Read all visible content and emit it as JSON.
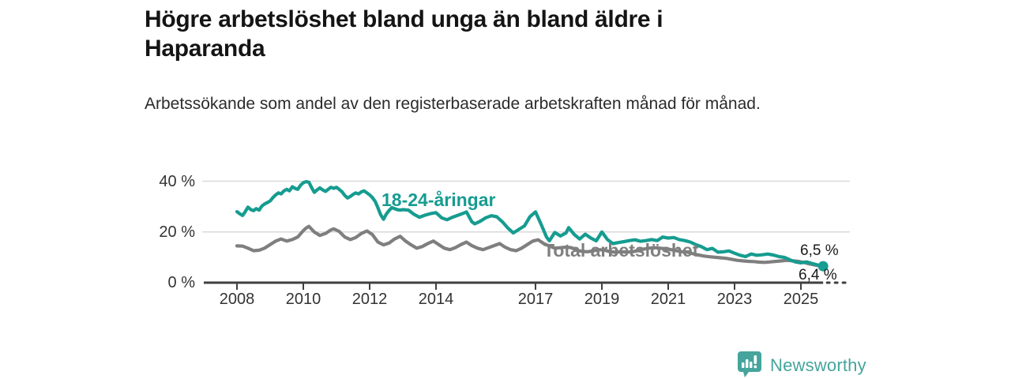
{
  "title": "Högre arbetslöshet bland unga än bland äldre i Haparanda",
  "subtitle": "Arbetssökande som andel av den registerbaserade arbetskraften månad för månad.",
  "branding": {
    "logo_text": "Newsworthy",
    "logo_color": "#45a49c",
    "icon": "newsworthy-speech-bubble-bar-chart-icon"
  },
  "chart_data": {
    "type": "line",
    "title": "Högre arbetslöshet bland unga än bland äldre i Haparanda",
    "xlabel": "",
    "ylabel": "",
    "grid": "horizontal",
    "legend_position": "inline-labels",
    "xlim": [
      2007.1,
      2026.5
    ],
    "ylim": [
      0,
      42
    ],
    "x_ticks": [
      2008,
      2010,
      2012,
      2014,
      2017,
      2019,
      2021,
      2023,
      2025
    ],
    "x_tick_labels": [
      "2008",
      "2010",
      "2012",
      "2014",
      "2017",
      "2019",
      "2021",
      "2023",
      "2025"
    ],
    "y_ticks": [
      0,
      20,
      40
    ],
    "y_tick_labels": [
      "0 %",
      "20 %",
      "40 %"
    ],
    "axis_color": "#3f3f3f",
    "grid_color": "#d9d9d9",
    "axis_dotted_extension": [
      2025.67,
      2026.45
    ],
    "series": [
      {
        "name": "18-24-åringar",
        "color": "#169c90",
        "end_label": "6,5 %",
        "end_value": 6.5,
        "end_marker": "dot",
        "points": [
          [
            2008.0,
            28.0
          ],
          [
            2008.08,
            27.2
          ],
          [
            2008.17,
            26.5
          ],
          [
            2008.25,
            28.0
          ],
          [
            2008.33,
            29.8
          ],
          [
            2008.42,
            28.8
          ],
          [
            2008.5,
            28.4
          ],
          [
            2008.58,
            29.2
          ],
          [
            2008.67,
            28.6
          ],
          [
            2008.75,
            30.2
          ],
          [
            2008.83,
            31.0
          ],
          [
            2008.92,
            31.6
          ],
          [
            2009.0,
            32.2
          ],
          [
            2009.08,
            33.5
          ],
          [
            2009.17,
            34.6
          ],
          [
            2009.25,
            35.4
          ],
          [
            2009.33,
            35.0
          ],
          [
            2009.42,
            36.2
          ],
          [
            2009.5,
            36.8
          ],
          [
            2009.58,
            36.2
          ],
          [
            2009.67,
            37.8
          ],
          [
            2009.75,
            37.2
          ],
          [
            2009.83,
            36.8
          ],
          [
            2009.92,
            38.4
          ],
          [
            2010.0,
            39.4
          ],
          [
            2010.08,
            39.8
          ],
          [
            2010.17,
            39.6
          ],
          [
            2010.25,
            37.5
          ],
          [
            2010.33,
            35.6
          ],
          [
            2010.42,
            36.6
          ],
          [
            2010.5,
            37.4
          ],
          [
            2010.58,
            36.6
          ],
          [
            2010.67,
            36.0
          ],
          [
            2010.75,
            36.8
          ],
          [
            2010.83,
            37.6
          ],
          [
            2010.92,
            37.2
          ],
          [
            2011.0,
            37.6
          ],
          [
            2011.08,
            36.8
          ],
          [
            2011.17,
            35.8
          ],
          [
            2011.25,
            34.4
          ],
          [
            2011.33,
            33.4
          ],
          [
            2011.42,
            34.0
          ],
          [
            2011.5,
            34.8
          ],
          [
            2011.58,
            35.4
          ],
          [
            2011.67,
            35.0
          ],
          [
            2011.75,
            35.8
          ],
          [
            2011.83,
            36.2
          ],
          [
            2011.92,
            35.4
          ],
          [
            2012.0,
            34.6
          ],
          [
            2012.08,
            33.6
          ],
          [
            2012.17,
            32.0
          ],
          [
            2012.25,
            29.5
          ],
          [
            2012.33,
            26.8
          ],
          [
            2012.42,
            25.0
          ],
          [
            2012.5,
            27.0
          ],
          [
            2012.58,
            28.4
          ],
          [
            2012.67,
            29.6
          ],
          [
            2012.75,
            29.2
          ],
          [
            2012.83,
            28.8
          ],
          [
            2012.92,
            28.6
          ],
          [
            2013.0,
            28.8
          ],
          [
            2013.17,
            28.6
          ],
          [
            2013.33,
            27.0
          ],
          [
            2013.5,
            25.8
          ],
          [
            2013.67,
            26.6
          ],
          [
            2013.83,
            27.2
          ],
          [
            2014.0,
            27.6
          ],
          [
            2014.17,
            25.6
          ],
          [
            2014.33,
            24.8
          ],
          [
            2014.5,
            25.8
          ],
          [
            2014.67,
            26.6
          ],
          [
            2014.83,
            27.4
          ],
          [
            2014.92,
            27.9
          ],
          [
            2015.08,
            24.0
          ],
          [
            2015.17,
            23.2
          ],
          [
            2015.33,
            24.2
          ],
          [
            2015.5,
            25.6
          ],
          [
            2015.67,
            26.4
          ],
          [
            2015.83,
            26.0
          ],
          [
            2016.0,
            24.0
          ],
          [
            2016.17,
            21.5
          ],
          [
            2016.33,
            19.6
          ],
          [
            2016.5,
            21.0
          ],
          [
            2016.67,
            22.4
          ],
          [
            2016.83,
            26.0
          ],
          [
            2017.0,
            27.9
          ],
          [
            2017.17,
            23.0
          ],
          [
            2017.33,
            18.0
          ],
          [
            2017.42,
            16.5
          ],
          [
            2017.58,
            19.8
          ],
          [
            2017.75,
            18.4
          ],
          [
            2017.92,
            19.6
          ],
          [
            2018.0,
            21.7
          ],
          [
            2018.17,
            19.0
          ],
          [
            2018.33,
            17.2
          ],
          [
            2018.5,
            19.1
          ],
          [
            2018.67,
            17.6
          ],
          [
            2018.83,
            16.5
          ],
          [
            2019.0,
            20.0
          ],
          [
            2019.17,
            17.0
          ],
          [
            2019.33,
            15.4
          ],
          [
            2019.5,
            15.8
          ],
          [
            2019.67,
            16.2
          ],
          [
            2019.83,
            16.6
          ],
          [
            2020.0,
            16.9
          ],
          [
            2020.17,
            16.3
          ],
          [
            2020.33,
            16.6
          ],
          [
            2020.5,
            17.0
          ],
          [
            2020.67,
            16.6
          ],
          [
            2020.83,
            18.0
          ],
          [
            2021.0,
            17.6
          ],
          [
            2021.17,
            17.8
          ],
          [
            2021.33,
            17.0
          ],
          [
            2021.5,
            16.6
          ],
          [
            2021.67,
            16.0
          ],
          [
            2021.83,
            15.0
          ],
          [
            2022.0,
            14.2
          ],
          [
            2022.17,
            13.0
          ],
          [
            2022.33,
            13.5
          ],
          [
            2022.5,
            12.0
          ],
          [
            2022.67,
            12.2
          ],
          [
            2022.83,
            12.5
          ],
          [
            2023.0,
            11.6
          ],
          [
            2023.17,
            10.8
          ],
          [
            2023.33,
            10.3
          ],
          [
            2023.5,
            11.3
          ],
          [
            2023.67,
            10.8
          ],
          [
            2023.83,
            11.0
          ],
          [
            2024.0,
            11.3
          ],
          [
            2024.17,
            10.9
          ],
          [
            2024.33,
            10.3
          ],
          [
            2024.5,
            10.0
          ],
          [
            2024.67,
            9.0
          ],
          [
            2024.83,
            8.2
          ],
          [
            2025.0,
            7.8
          ],
          [
            2025.17,
            8.2
          ],
          [
            2025.33,
            7.6
          ],
          [
            2025.5,
            7.0
          ],
          [
            2025.67,
            6.5
          ]
        ]
      },
      {
        "name": "Total arbetslöshet",
        "color": "#7f7f7f",
        "end_label": "6,4 %",
        "end_value": 6.4,
        "end_marker": "none",
        "points": [
          [
            2008.0,
            14.5
          ],
          [
            2008.17,
            14.4
          ],
          [
            2008.33,
            13.6
          ],
          [
            2008.5,
            12.6
          ],
          [
            2008.67,
            12.8
          ],
          [
            2008.83,
            13.6
          ],
          [
            2009.0,
            15.0
          ],
          [
            2009.17,
            16.4
          ],
          [
            2009.33,
            17.2
          ],
          [
            2009.5,
            16.4
          ],
          [
            2009.67,
            17.0
          ],
          [
            2009.83,
            18.0
          ],
          [
            2010.0,
            20.5
          ],
          [
            2010.08,
            21.5
          ],
          [
            2010.17,
            22.2
          ],
          [
            2010.33,
            20.0
          ],
          [
            2010.5,
            18.6
          ],
          [
            2010.67,
            19.4
          ],
          [
            2010.83,
            20.8
          ],
          [
            2010.92,
            21.2
          ],
          [
            2011.08,
            20.2
          ],
          [
            2011.25,
            18.0
          ],
          [
            2011.42,
            17.0
          ],
          [
            2011.58,
            17.8
          ],
          [
            2011.75,
            19.4
          ],
          [
            2011.92,
            20.4
          ],
          [
            2012.08,
            19.0
          ],
          [
            2012.25,
            16.0
          ],
          [
            2012.42,
            14.9
          ],
          [
            2012.58,
            15.6
          ],
          [
            2012.75,
            17.2
          ],
          [
            2012.92,
            18.3
          ],
          [
            2013.08,
            16.4
          ],
          [
            2013.25,
            14.9
          ],
          [
            2013.42,
            13.6
          ],
          [
            2013.58,
            14.2
          ],
          [
            2013.75,
            15.4
          ],
          [
            2013.92,
            16.4
          ],
          [
            2014.08,
            15.0
          ],
          [
            2014.25,
            13.6
          ],
          [
            2014.42,
            13.0
          ],
          [
            2014.58,
            13.8
          ],
          [
            2014.75,
            15.0
          ],
          [
            2014.92,
            16.0
          ],
          [
            2015.08,
            14.6
          ],
          [
            2015.25,
            13.6
          ],
          [
            2015.42,
            13.0
          ],
          [
            2015.58,
            13.8
          ],
          [
            2015.75,
            14.6
          ],
          [
            2015.92,
            15.4
          ],
          [
            2016.08,
            14.0
          ],
          [
            2016.25,
            13.0
          ],
          [
            2016.42,
            12.6
          ],
          [
            2016.58,
            13.6
          ],
          [
            2016.75,
            15.0
          ],
          [
            2016.92,
            16.4
          ],
          [
            2017.08,
            16.9
          ],
          [
            2017.25,
            15.4
          ],
          [
            2017.42,
            14.4
          ],
          [
            2017.58,
            13.6
          ],
          [
            2017.75,
            13.8
          ],
          [
            2017.92,
            14.0
          ],
          [
            2018.08,
            13.8
          ],
          [
            2018.25,
            12.8
          ],
          [
            2018.42,
            12.3
          ],
          [
            2018.58,
            12.2
          ],
          [
            2018.75,
            12.6
          ],
          [
            2018.92,
            13.0
          ],
          [
            2019.08,
            12.8
          ],
          [
            2019.25,
            12.2
          ],
          [
            2019.42,
            12.0
          ],
          [
            2019.58,
            12.2
          ],
          [
            2019.75,
            12.0
          ],
          [
            2019.92,
            12.2
          ],
          [
            2020.08,
            12.6
          ],
          [
            2020.25,
            13.2
          ],
          [
            2020.42,
            13.6
          ],
          [
            2020.58,
            13.8
          ],
          [
            2020.75,
            13.6
          ],
          [
            2020.92,
            13.4
          ],
          [
            2021.08,
            13.0
          ],
          [
            2021.25,
            12.6
          ],
          [
            2021.42,
            12.2
          ],
          [
            2021.58,
            12.0
          ],
          [
            2021.75,
            11.4
          ],
          [
            2021.92,
            10.9
          ],
          [
            2022.08,
            10.5
          ],
          [
            2022.25,
            10.2
          ],
          [
            2022.42,
            10.0
          ],
          [
            2022.58,
            9.8
          ],
          [
            2022.75,
            9.6
          ],
          [
            2022.92,
            9.2
          ],
          [
            2023.08,
            8.8
          ],
          [
            2023.25,
            8.6
          ],
          [
            2023.42,
            8.4
          ],
          [
            2023.58,
            8.3
          ],
          [
            2023.75,
            8.1
          ],
          [
            2023.92,
            8.0
          ],
          [
            2024.08,
            8.2
          ],
          [
            2024.25,
            8.4
          ],
          [
            2024.42,
            8.6
          ],
          [
            2024.58,
            8.8
          ],
          [
            2024.75,
            8.6
          ],
          [
            2024.92,
            8.4
          ],
          [
            2025.08,
            8.0
          ],
          [
            2025.25,
            7.4
          ],
          [
            2025.42,
            7.0
          ],
          [
            2025.58,
            6.6
          ],
          [
            2025.67,
            6.4
          ]
        ]
      }
    ]
  }
}
